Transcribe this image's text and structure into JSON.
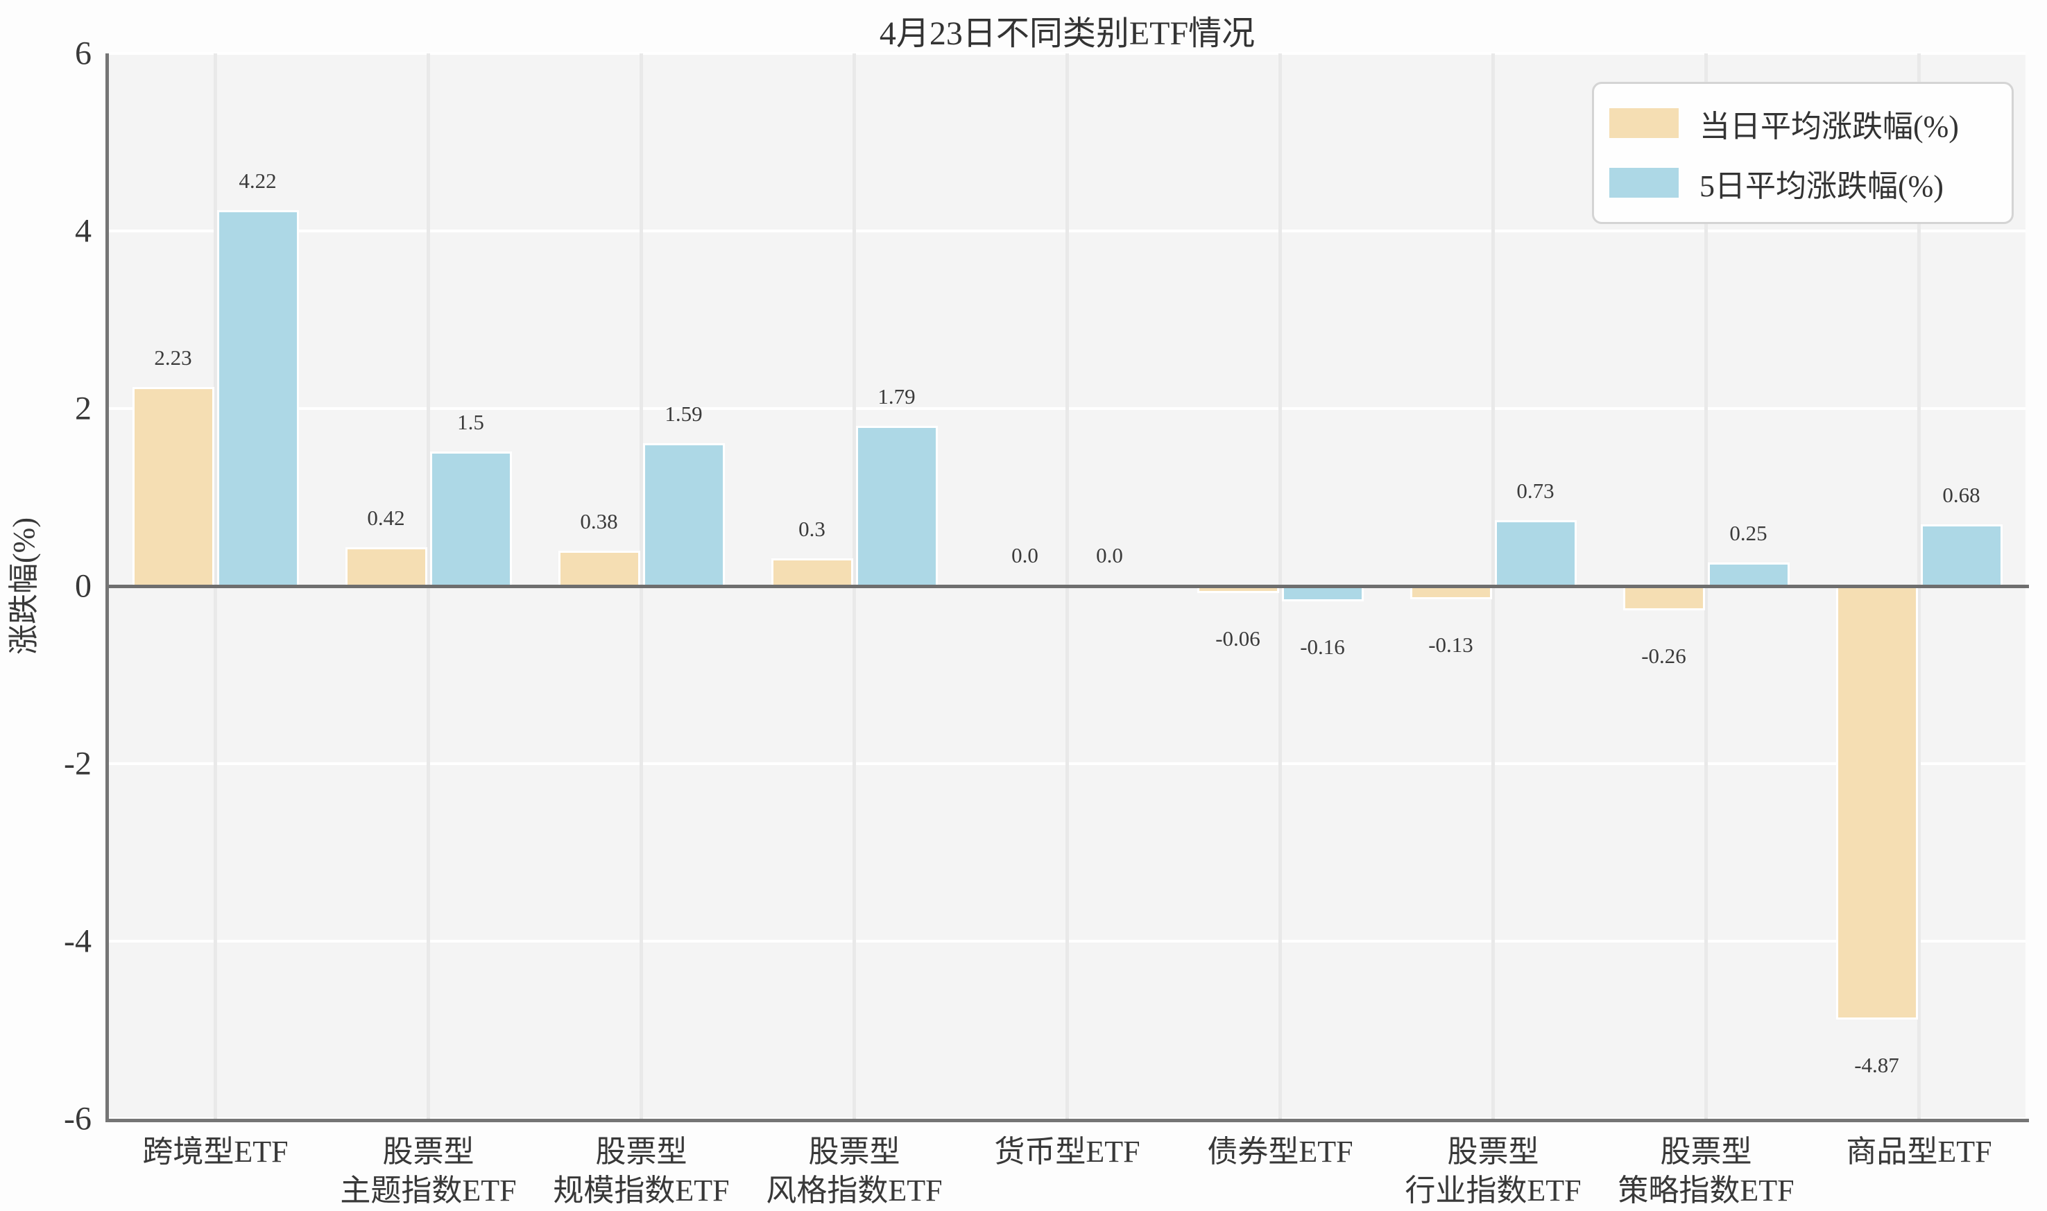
{
  "chart_data": {
    "type": "bar",
    "title": "4月23日不同类别ETF情况",
    "ylabel": "涨跌幅(%)",
    "ylim": [
      -6,
      6
    ],
    "yticks": [
      "6",
      "4",
      "2",
      "0",
      "-2",
      "-4",
      "-6"
    ],
    "grid": true,
    "legend_position": "upper right",
    "categories": [
      [
        "跨境型ETF"
      ],
      [
        "股票型",
        "主题指数ETF"
      ],
      [
        "股票型",
        "规模指数ETF"
      ],
      [
        "股票型",
        "风格指数ETF"
      ],
      [
        "货币型ETF"
      ],
      [
        "债券型ETF"
      ],
      [
        "股票型",
        "行业指数ETF"
      ],
      [
        "股票型",
        "策略指数ETF"
      ],
      [
        "商品型ETF"
      ]
    ],
    "series": [
      {
        "name": "当日平均涨跌幅(%)",
        "color": "#F5DEB3",
        "values": [
          2.23,
          0.42,
          0.38,
          0.3,
          0.0,
          -0.06,
          -0.13,
          -0.26,
          -4.87
        ],
        "labels": [
          "2.23",
          "0.42",
          "0.38",
          "0.3",
          "0.0",
          "-0.06",
          "-0.13",
          "-0.26",
          "-4.87"
        ]
      },
      {
        "name": "5日平均涨跌幅(%)",
        "color": "#ADD8E6",
        "values": [
          4.22,
          1.5,
          1.59,
          1.79,
          0.0,
          -0.16,
          0.73,
          0.25,
          0.68
        ],
        "labels": [
          "4.22",
          "1.5",
          "1.59",
          "1.79",
          "0.0",
          "-0.16",
          "0.73",
          "0.25",
          "0.68"
        ]
      }
    ],
    "colors": {
      "plot_background": "#f4f4f4",
      "h_gridline": "#ffffff",
      "v_gridline": "#e9e9e9",
      "spine": "#757575",
      "zero_line": "#6e6e6e",
      "series_day": "#F5DEB3",
      "series_5day": "#ADD8E6"
    }
  }
}
